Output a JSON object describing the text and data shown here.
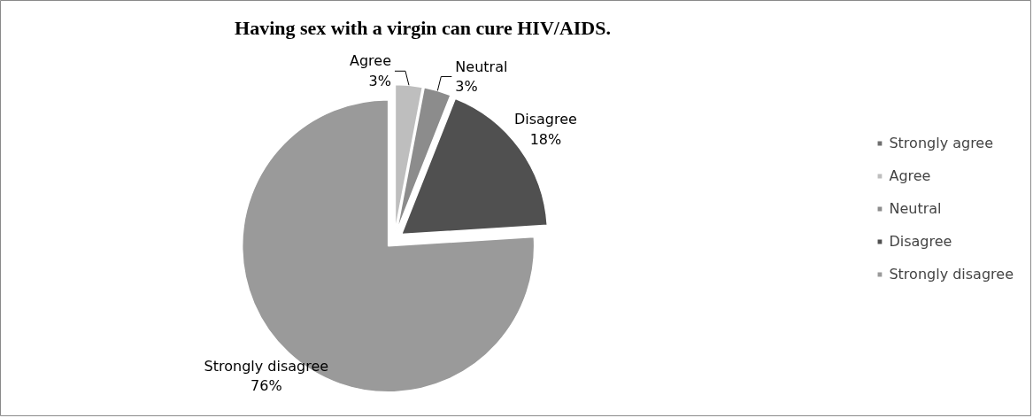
{
  "chart_data": {
    "type": "pie",
    "title": "Having sex with a virgin can cure HIV/AIDS.",
    "categories": [
      "Strongly agree",
      "Agree",
      "Neutral",
      "Disagree",
      "Strongly disagree"
    ],
    "values": [
      0,
      3,
      3,
      18,
      76
    ],
    "value_labels": [
      null,
      "3%",
      "3%",
      "18%",
      "76%"
    ],
    "colors": [
      "#6e6e6e",
      "#bebebe",
      "#8c8c8c",
      "#505050",
      "#9a9a9a"
    ],
    "legend": "right"
  }
}
